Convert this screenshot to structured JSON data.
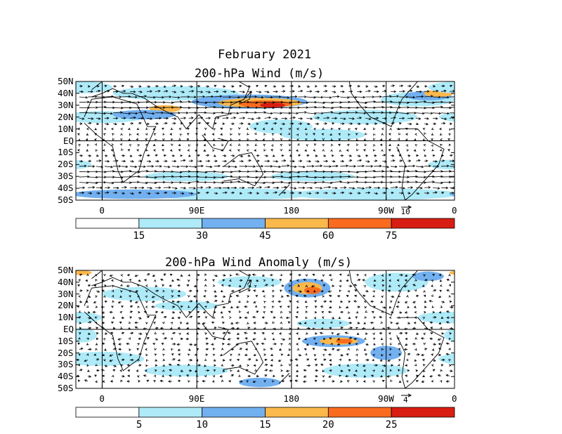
{
  "page": {
    "title_line1": "February 2021",
    "title_line2": "200-hPa Wind (m/s)",
    "title_panel2": "200-hPa Wind Anomaly (m/s)"
  },
  "chart_data": [
    {
      "type": "heatmap",
      "title": "200-hPa Wind (m/s)",
      "subtitle": "February 2021",
      "y_tick_labels": [
        "50N",
        "40N",
        "30N",
        "20N",
        "10N",
        "EQ",
        "10S",
        "20S",
        "30S",
        "40S",
        "50S"
      ],
      "x_tick_labels": [
        "0",
        "90E",
        "180",
        "90W",
        "0"
      ],
      "xlim": [
        0,
        360
      ],
      "ylim": [
        -50,
        50
      ],
      "reference_vector_label": "10",
      "colorbar": {
        "labels": [
          "15",
          "30",
          "45",
          "60",
          "75"
        ],
        "colors": [
          "#ffffff",
          "#aeeaf8",
          "#72b0f0",
          "#fbb84b",
          "#f96b1e",
          "#d81e12"
        ]
      }
    },
    {
      "type": "heatmap",
      "title": "200-hPa Wind Anomaly (m/s)",
      "y_tick_labels": [
        "50N",
        "40N",
        "30N",
        "20N",
        "10N",
        "EQ",
        "10S",
        "20S",
        "30S",
        "40S",
        "50S"
      ],
      "x_tick_labels": [
        "0",
        "90E",
        "180",
        "90W",
        "0"
      ],
      "xlim": [
        0,
        360
      ],
      "ylim": [
        -50,
        50
      ],
      "reference_vector_label": "4",
      "colorbar": {
        "labels": [
          "5",
          "10",
          "15",
          "20",
          "25"
        ],
        "colors": [
          "#ffffff",
          "#aeeaf8",
          "#72b0f0",
          "#fbb84b",
          "#f96b1e",
          "#d81e12"
        ]
      }
    }
  ]
}
